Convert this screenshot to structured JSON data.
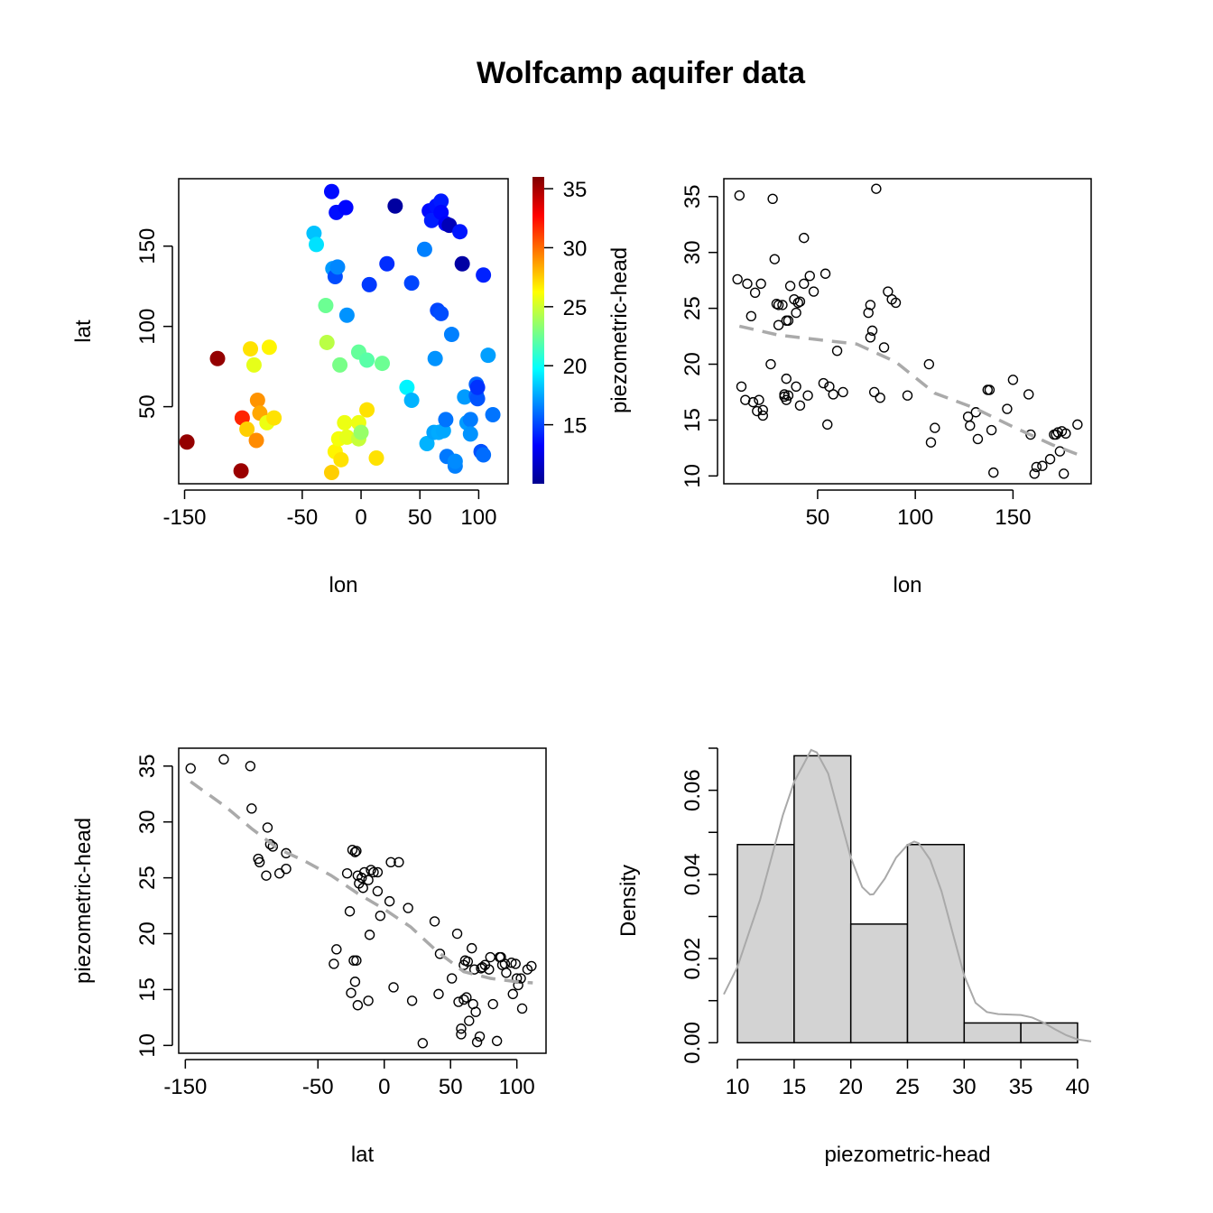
{
  "title": "Wolfcamp aquifer data",
  "colors": {
    "smooth": "#aaaaaa",
    "hist_fill": "#d3d3d3",
    "density": "#a9a9a9"
  },
  "chart_data": [
    {
      "id": "map",
      "type": "scatter",
      "xlabel": "lon",
      "ylabel": "lat",
      "colorbar_label": "piezometric-head",
      "colorbar_range": [
        10,
        36
      ],
      "colorbar_ticks": [
        15,
        20,
        25,
        30,
        35
      ],
      "xlim": [
        -155,
        125
      ],
      "ylim": [
        2,
        192
      ],
      "xticks": [
        -150,
        -50,
        0,
        50,
        100
      ],
      "yticks": [
        50,
        100,
        150
      ],
      "colormap": "jet",
      "points": [
        [
          -148,
          28,
          35.5
        ],
        [
          -122,
          80,
          35.5
        ],
        [
          -102,
          10,
          35.3
        ],
        [
          -101,
          43,
          31.8
        ],
        [
          -97,
          36,
          27.5
        ],
        [
          -94,
          86,
          27
        ],
        [
          -91,
          76,
          25.6
        ],
        [
          -88,
          54,
          29
        ],
        [
          -89,
          29,
          29.2
        ],
        [
          -86,
          46,
          28.5
        ],
        [
          -80,
          40,
          25.8
        ],
        [
          -78,
          87,
          26.5
        ],
        [
          -74,
          43,
          27
        ],
        [
          -40,
          158,
          18.2
        ],
        [
          -38,
          151,
          19
        ],
        [
          -30,
          113,
          22.5
        ],
        [
          -29,
          90,
          24.5
        ],
        [
          -25,
          184,
          13.5
        ],
        [
          -25,
          9,
          27.5
        ],
        [
          -24,
          136,
          17.2
        ],
        [
          -22,
          22,
          26.5
        ],
        [
          -22,
          131,
          15.2
        ],
        [
          -21,
          171,
          13.6
        ],
        [
          -20,
          137,
          16.7
        ],
        [
          -19,
          30,
          26
        ],
        [
          -18,
          76,
          22.8
        ],
        [
          -17,
          17,
          27
        ],
        [
          -14,
          40,
          25.8
        ],
        [
          -13,
          174,
          13.4
        ],
        [
          -12,
          107,
          17
        ],
        [
          -12,
          31,
          25.6
        ],
        [
          -2,
          40,
          25.8
        ],
        [
          -2,
          84,
          22.3
        ],
        [
          -2,
          30,
          24.8
        ],
        [
          0,
          34,
          23.6
        ],
        [
          5,
          48,
          27
        ],
        [
          5,
          79,
          22
        ],
        [
          7,
          126,
          14.7
        ],
        [
          13,
          18,
          27
        ],
        [
          18,
          77,
          22.5
        ],
        [
          22,
          139,
          14.4
        ],
        [
          29,
          175,
          10.5
        ],
        [
          39,
          62,
          19.5
        ],
        [
          43,
          54,
          17.8
        ],
        [
          43,
          127,
          15
        ],
        [
          54,
          148,
          16.5
        ],
        [
          56,
          27,
          17.8
        ],
        [
          58,
          172,
          13.5
        ],
        [
          60,
          166,
          14
        ],
        [
          62,
          34,
          17.4
        ],
        [
          63,
          80,
          17
        ],
        [
          64,
          175,
          13.7
        ],
        [
          65,
          110,
          15
        ],
        [
          66,
          34,
          17.6
        ],
        [
          68,
          108,
          15.2
        ],
        [
          68,
          178,
          13.9
        ],
        [
          68,
          171,
          13.4
        ],
        [
          70,
          35,
          17.5
        ],
        [
          72,
          164,
          13.2
        ],
        [
          72,
          42,
          16.2
        ],
        [
          73,
          19,
          16.3
        ],
        [
          75,
          163,
          11.2
        ],
        [
          77,
          95,
          16.5
        ],
        [
          80,
          13,
          16.5
        ],
        [
          80,
          16,
          16.8
        ],
        [
          84,
          159,
          13.8
        ],
        [
          86,
          139,
          10.6
        ],
        [
          88,
          56,
          17.2
        ],
        [
          90,
          40,
          17.2
        ],
        [
          93,
          42,
          16.4
        ],
        [
          93,
          33,
          17
        ],
        [
          98,
          64,
          15.8
        ],
        [
          98,
          57,
          15.8
        ],
        [
          99,
          55,
          15.4
        ],
        [
          99,
          62,
          14.5
        ],
        [
          102,
          22,
          15.3
        ],
        [
          104,
          20,
          16
        ],
        [
          104,
          132,
          14.1
        ],
        [
          108,
          82,
          17.3
        ],
        [
          112,
          45,
          16.2
        ]
      ]
    },
    {
      "id": "lon-vs-head",
      "type": "scatter",
      "xlabel": "lon",
      "ylabel": "",
      "xlim": [
        2,
        190
      ],
      "ylim": [
        9.3,
        36.6
      ],
      "xticks": [
        50,
        100,
        150
      ],
      "yticks": [
        10,
        15,
        20,
        25,
        30,
        35
      ],
      "points": [
        [
          10,
          35.1
        ],
        [
          9,
          27.6
        ],
        [
          11,
          18
        ],
        [
          13,
          16.8
        ],
        [
          14,
          27.2
        ],
        [
          16,
          24.3
        ],
        [
          17,
          16.6
        ],
        [
          18,
          26.4
        ],
        [
          19,
          15.8
        ],
        [
          20,
          16.8
        ],
        [
          21,
          27.2
        ],
        [
          22,
          15.9
        ],
        [
          22,
          15.4
        ],
        [
          26,
          20
        ],
        [
          27,
          34.8
        ],
        [
          28,
          29.4
        ],
        [
          29,
          25.4
        ],
        [
          30,
          23.5
        ],
        [
          30,
          25.3
        ],
        [
          32,
          25.3
        ],
        [
          33,
          17.3
        ],
        [
          33,
          17.1
        ],
        [
          34,
          18.7
        ],
        [
          34,
          16.8
        ],
        [
          34,
          23.9
        ],
        [
          35,
          17.2
        ],
        [
          35,
          23.9
        ],
        [
          36,
          27
        ],
        [
          38,
          25.8
        ],
        [
          39,
          24.6
        ],
        [
          39,
          18
        ],
        [
          40,
          25.5
        ],
        [
          41,
          25.6
        ],
        [
          41,
          16.3
        ],
        [
          43,
          31.3
        ],
        [
          43,
          27.2
        ],
        [
          45,
          17.2
        ],
        [
          46,
          27.9
        ],
        [
          48,
          26.5
        ],
        [
          53,
          18.3
        ],
        [
          54,
          28.1
        ],
        [
          55,
          14.6
        ],
        [
          56,
          18
        ],
        [
          58,
          17.3
        ],
        [
          60,
          21.2
        ],
        [
          63,
          17.5
        ],
        [
          76,
          24.6
        ],
        [
          77,
          25.3
        ],
        [
          77,
          22.4
        ],
        [
          78,
          23
        ],
        [
          79,
          17.5
        ],
        [
          80,
          35.7
        ],
        [
          82,
          17
        ],
        [
          84,
          21.5
        ],
        [
          86,
          26.5
        ],
        [
          88,
          25.8
        ],
        [
          90,
          25.5
        ],
        [
          96,
          17.2
        ],
        [
          107,
          20
        ],
        [
          108,
          13
        ],
        [
          110,
          14.3
        ],
        [
          127,
          15.3
        ],
        [
          128,
          14.5
        ],
        [
          131,
          15.7
        ],
        [
          132,
          13.3
        ],
        [
          137,
          17.7
        ],
        [
          138,
          17.7
        ],
        [
          139,
          14.1
        ],
        [
          140,
          10.3
        ],
        [
          147,
          16
        ],
        [
          150,
          18.6
        ],
        [
          158,
          17.3
        ],
        [
          159,
          13.7
        ],
        [
          161,
          10.2
        ],
        [
          162,
          10.8
        ],
        [
          165,
          10.9
        ],
        [
          169,
          11.5
        ],
        [
          171,
          13.7
        ],
        [
          172,
          13.7
        ],
        [
          173,
          13.9
        ],
        [
          174,
          12.2
        ],
        [
          175,
          14
        ],
        [
          176,
          10.2
        ],
        [
          177,
          13.8
        ],
        [
          183,
          14.6
        ]
      ],
      "smooth": [
        [
          10,
          23.4
        ],
        [
          30,
          22.6
        ],
        [
          50,
          22.2
        ],
        [
          70,
          21.8
        ],
        [
          90,
          20.2
        ],
        [
          110,
          17.4
        ],
        [
          130,
          16.1
        ],
        [
          150,
          14.4
        ],
        [
          170,
          12.8
        ],
        [
          185,
          11.8
        ]
      ]
    },
    {
      "id": "lat-vs-head",
      "type": "scatter",
      "xlabel": "lat",
      "ylabel": "piezometric-head",
      "xlim": [
        -155,
        122
      ],
      "ylim": [
        9.3,
        36.6
      ],
      "xticks": [
        -150,
        -50,
        0,
        50,
        100
      ],
      "yticks": [
        10,
        15,
        20,
        25,
        30,
        35
      ],
      "points": [
        [
          -146,
          34.8
        ],
        [
          -121,
          35.6
        ],
        [
          -101,
          35
        ],
        [
          -100,
          31.2
        ],
        [
          -95,
          26.7
        ],
        [
          -94,
          26.4
        ],
        [
          -89,
          25.2
        ],
        [
          -88,
          29.5
        ],
        [
          -86,
          28
        ],
        [
          -84,
          27.8
        ],
        [
          -79,
          25.4
        ],
        [
          -74,
          25.8
        ],
        [
          -74,
          27.2
        ],
        [
          -38,
          17.3
        ],
        [
          -36,
          18.6
        ],
        [
          -28,
          25.4
        ],
        [
          -26,
          22
        ],
        [
          -25,
          14.7
        ],
        [
          -24,
          27.5
        ],
        [
          -23,
          17.6
        ],
        [
          -22,
          27.3
        ],
        [
          -22,
          15.7
        ],
        [
          -21,
          27.4
        ],
        [
          -21,
          17.6
        ],
        [
          -20,
          25.2
        ],
        [
          -20,
          13.6
        ],
        [
          -19,
          24.5
        ],
        [
          -17,
          25
        ],
        [
          -16,
          24.1
        ],
        [
          -15,
          25.5
        ],
        [
          -12,
          24.8
        ],
        [
          -12,
          14
        ],
        [
          -11,
          19.9
        ],
        [
          -10,
          25.7
        ],
        [
          -8,
          25.5
        ],
        [
          -5,
          25.5
        ],
        [
          -5,
          23.8
        ],
        [
          -3,
          21.6
        ],
        [
          4,
          22.9
        ],
        [
          5,
          26.4
        ],
        [
          7,
          15.2
        ],
        [
          11,
          26.4
        ],
        [
          18,
          22.3
        ],
        [
          21,
          14
        ],
        [
          29,
          10.2
        ],
        [
          38,
          21.1
        ],
        [
          41,
          14.6
        ],
        [
          42,
          18.2
        ],
        [
          51,
          16
        ],
        [
          55,
          20
        ],
        [
          56,
          13.9
        ],
        [
          58,
          11
        ],
        [
          58,
          11.5
        ],
        [
          60,
          17.2
        ],
        [
          60,
          14.1
        ],
        [
          61,
          17.6
        ],
        [
          62,
          14.3
        ],
        [
          63,
          17.5
        ],
        [
          64,
          12.2
        ],
        [
          66,
          18.7
        ],
        [
          67,
          13.7
        ],
        [
          68,
          16.8
        ],
        [
          69,
          13
        ],
        [
          70,
          10.3
        ],
        [
          72,
          10.8
        ],
        [
          73,
          16.9
        ],
        [
          74,
          17
        ],
        [
          76,
          17.2
        ],
        [
          79,
          16.8
        ],
        [
          80,
          17.9
        ],
        [
          82,
          13.7
        ],
        [
          85,
          10.4
        ],
        [
          87,
          17.9
        ],
        [
          88,
          17.9
        ],
        [
          89,
          17.2
        ],
        [
          91,
          17.3
        ],
        [
          92,
          16.5
        ],
        [
          96,
          17.4
        ],
        [
          97,
          14.6
        ],
        [
          99,
          17.3
        ],
        [
          100,
          16
        ],
        [
          101,
          15.4
        ],
        [
          103,
          16
        ],
        [
          104,
          13.3
        ],
        [
          108,
          16.8
        ],
        [
          111,
          17.1
        ]
      ],
      "smooth": [
        [
          -146,
          33.6
        ],
        [
          -120,
          31.4
        ],
        [
          -100,
          29.4
        ],
        [
          -80,
          27.6
        ],
        [
          -60,
          26.5
        ],
        [
          -40,
          25.2
        ],
        [
          -20,
          23.6
        ],
        [
          0,
          22.2
        ],
        [
          20,
          20.6
        ],
        [
          40,
          18.4
        ],
        [
          60,
          16.6
        ],
        [
          80,
          16
        ],
        [
          100,
          15.7
        ],
        [
          112,
          15.6
        ]
      ]
    },
    {
      "id": "histogram",
      "type": "bar",
      "xlabel": "piezometric-head",
      "ylabel": "Density",
      "xlim": [
        8.8,
        41.2
      ],
      "ylim": [
        -0.0025,
        0.07
      ],
      "xticks": [
        10,
        15,
        20,
        25,
        30,
        35,
        40
      ],
      "yticks": [
        0,
        0.02,
        0.04,
        0.06
      ],
      "ytick_labels": [
        "0.00",
        "0.02",
        "0.04",
        "0.06"
      ],
      "bins": [
        [
          10,
          15,
          0.0471
        ],
        [
          15,
          20,
          0.0682
        ],
        [
          20,
          25,
          0.0282
        ],
        [
          25,
          30,
          0.0471
        ],
        [
          30,
          35,
          0.0047
        ],
        [
          35,
          40,
          0.0047
        ]
      ],
      "density": [
        [
          8.8,
          0.0115
        ],
        [
          10,
          0.018
        ],
        [
          11,
          0.026
        ],
        [
          12,
          0.034
        ],
        [
          13,
          0.044
        ],
        [
          14,
          0.054
        ],
        [
          15,
          0.062
        ],
        [
          16,
          0.067
        ],
        [
          16.5,
          0.0696
        ],
        [
          17,
          0.069
        ],
        [
          18,
          0.064
        ],
        [
          19,
          0.054
        ],
        [
          20,
          0.044
        ],
        [
          21,
          0.037
        ],
        [
          21.7,
          0.0352
        ],
        [
          22,
          0.0353
        ],
        [
          23,
          0.039
        ],
        [
          24,
          0.044
        ],
        [
          25,
          0.047
        ],
        [
          25.6,
          0.0478
        ],
        [
          26,
          0.0474
        ],
        [
          27,
          0.0435
        ],
        [
          28,
          0.036
        ],
        [
          29,
          0.026
        ],
        [
          30,
          0.016
        ],
        [
          31,
          0.0095
        ],
        [
          32,
          0.0073
        ],
        [
          33,
          0.0068
        ],
        [
          34,
          0.0067
        ],
        [
          35,
          0.0066
        ],
        [
          36,
          0.006
        ],
        [
          37,
          0.0048
        ],
        [
          38,
          0.0032
        ],
        [
          39,
          0.0018
        ],
        [
          40,
          0.0008
        ],
        [
          41.2,
          0.0003
        ]
      ]
    }
  ]
}
